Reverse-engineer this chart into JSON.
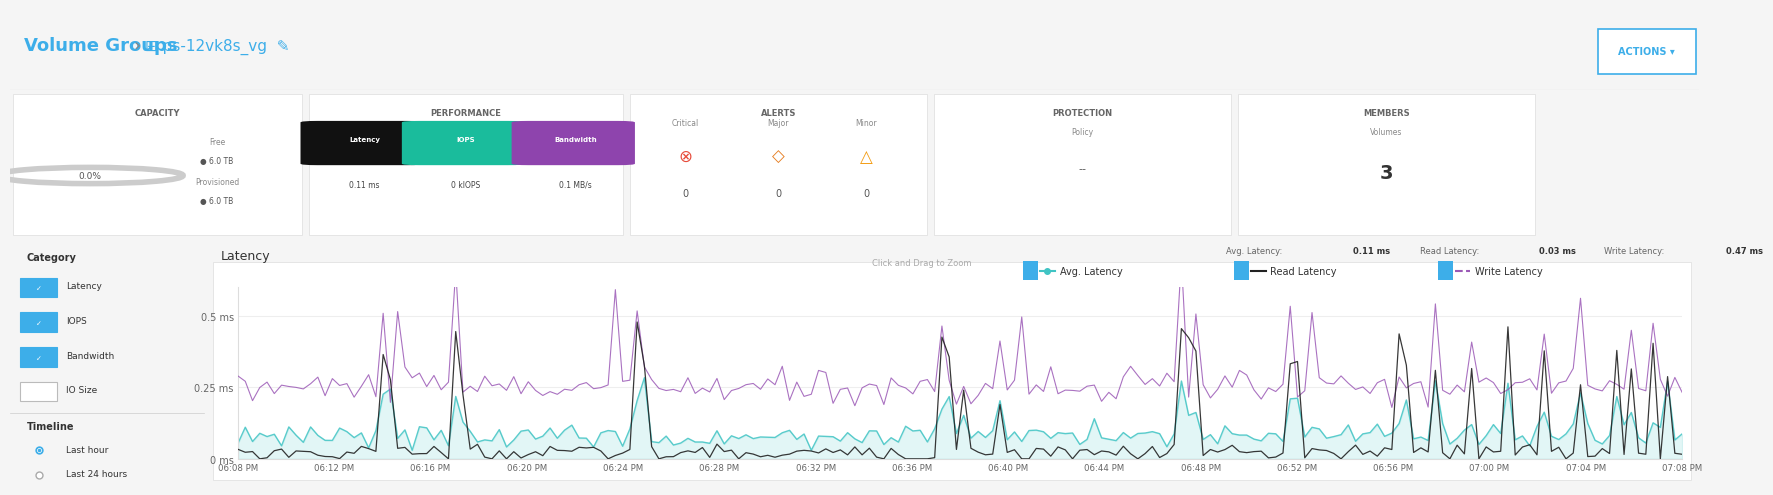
{
  "title_text": "Volume Groups",
  "breadcrumb": "ps-12vk8s_vg",
  "actions_label": "ACTIONS",
  "capacity_label": "CAPACITY",
  "capacity_pct": "0.0%",
  "capacity_free": "6.0 TB",
  "capacity_provisioned": "6.0 TB",
  "performance_label": "PERFORMANCE",
  "perf_latency_label": "Latency",
  "perf_latency_val": "0.11 ms",
  "perf_iops_label": "IOPS",
  "perf_iops_val": "0 kIOPS",
  "perf_bw_label": "Bandwidth",
  "perf_bw_val": "0.1 MB/s",
  "alerts_label": "ALERTS",
  "alert_critical_val": "0",
  "alert_major_val": "0",
  "alert_minor_val": "0",
  "protection_label": "PROTECTION",
  "protection_policy_val": "--",
  "members_label": "MEMBERS",
  "members_volumes_val": "3",
  "chart_title": "Latency",
  "chart_subtitle": "Click and Drag to Zoom",
  "chart_avg_label": "Avg. Latency: 0.11 ms",
  "chart_read_label": "Read Latency: 0.03 ms",
  "chart_write_label": "Write Latency: 0.47 ms",
  "legend_avg": "Avg. Latency",
  "legend_read": "Read Latency",
  "legend_write": "Write Latency",
  "color_avg": "#40c4c4",
  "color_read": "#222222",
  "color_write": "#9b59b6",
  "color_latency_badge": "#222222",
  "color_iops_badge": "#1abc9c",
  "color_bw_badge": "#8e44ad",
  "bg_color": "#f5f5f5",
  "card_bg": "#ffffff",
  "panel_bg": "#f0f0f0",
  "yticks": [
    0,
    0.25,
    0.5
  ],
  "ylabels": [
    "0 ms",
    "0.25 ms",
    "0.5 ms"
  ],
  "ylim": [
    0,
    0.6
  ],
  "xtick_labels": [
    "06:08 PM",
    "06:12 PM",
    "06:16 PM",
    "06:20 PM",
    "06:24 PM",
    "06:28 PM",
    "06:32 PM",
    "06:36 PM",
    "06:40 PM",
    "06:44 PM",
    "06:48 PM",
    "06:52 PM",
    "06:56 PM",
    "07:00 PM",
    "07:04 PM",
    "07:08 PM"
  ],
  "n_points": 200,
  "sidebar_categories": [
    "Latency",
    "IOPS",
    "Bandwidth",
    "IO Size"
  ],
  "sidebar_checked": [
    true,
    true,
    true,
    false
  ],
  "sidebar_timeline": "Timeline",
  "sidebar_last_hour": "Last hour",
  "sidebar_last_24": "Last 24 hours"
}
